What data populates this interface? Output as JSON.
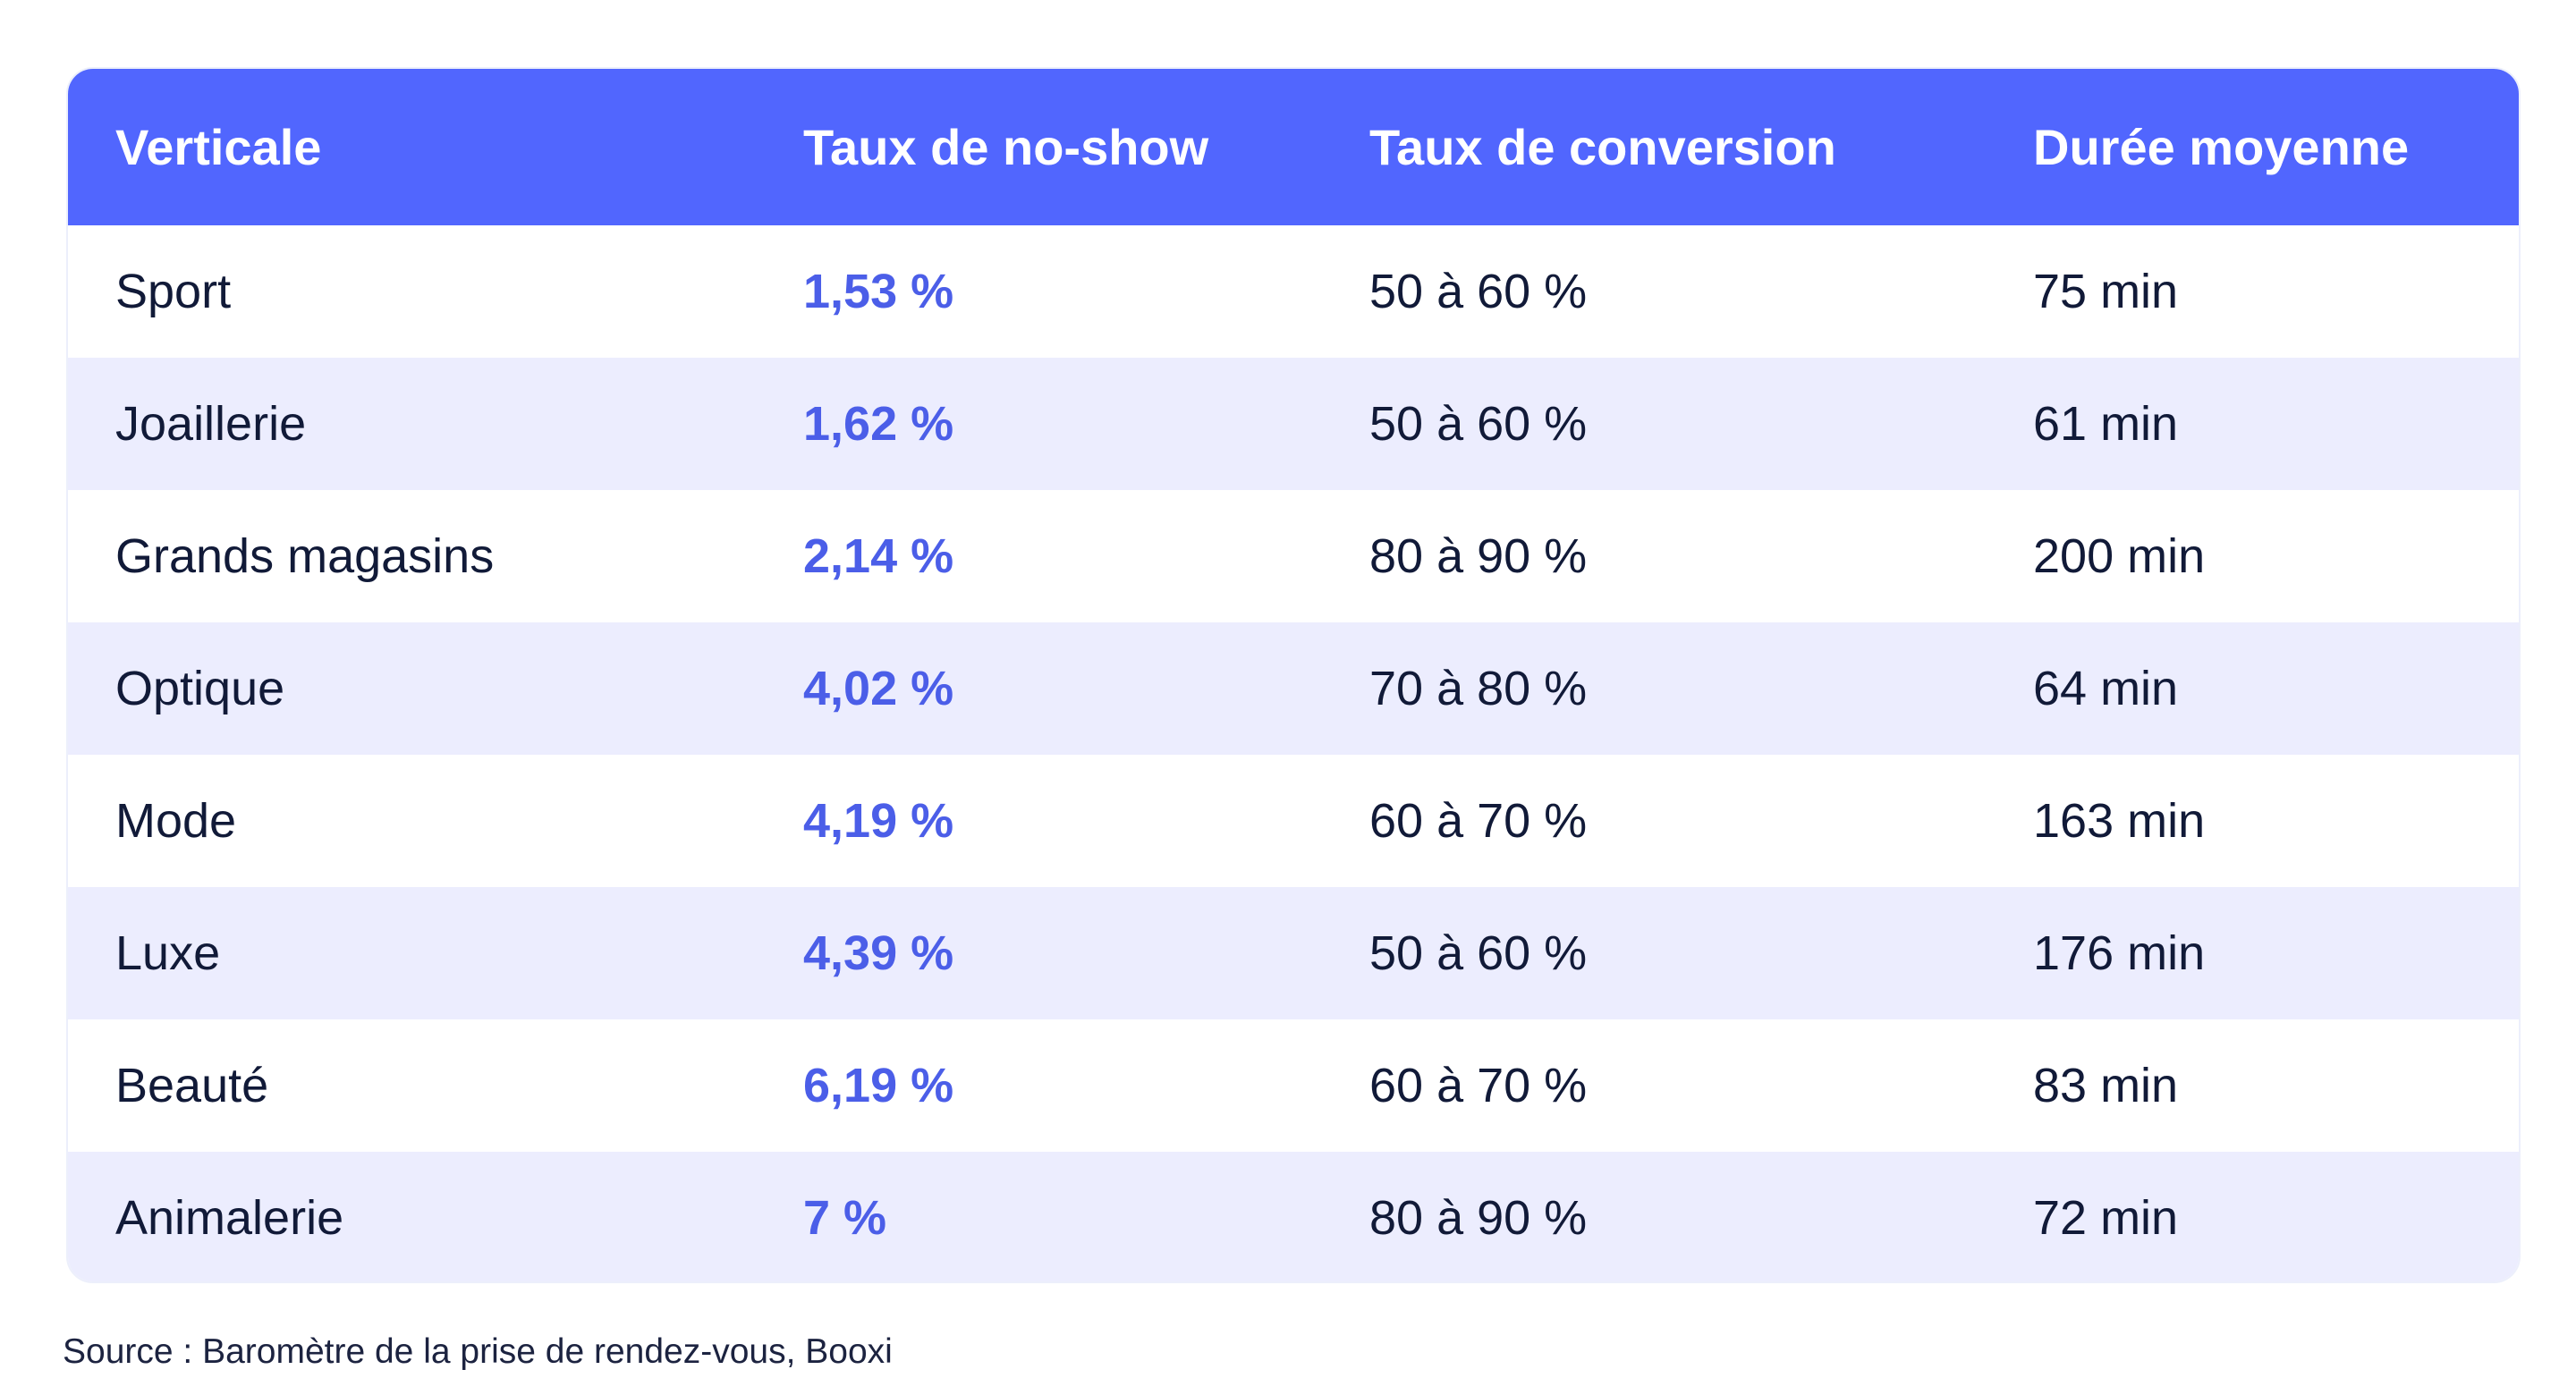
{
  "table": {
    "headers": [
      "Verticale",
      "Taux de no-show",
      "Taux de conversion",
      "Durée moyenne"
    ],
    "rows": [
      {
        "verticale": "Sport",
        "no_show": "1,53 %",
        "conversion": "50 à 60 %",
        "duree": "75 min"
      },
      {
        "verticale": "Joaillerie",
        "no_show": "1,62 %",
        "conversion": "50 à 60 %",
        "duree": "61 min"
      },
      {
        "verticale": "Grands magasins",
        "no_show": "2,14 %",
        "conversion": "80 à 90 %",
        "duree": "200 min"
      },
      {
        "verticale": "Optique",
        "no_show": "4,02 %",
        "conversion": "70 à 80 %",
        "duree": "64 min"
      },
      {
        "verticale": "Mode",
        "no_show": "4,19 %",
        "conversion": "60 à 70 %",
        "duree": "163 min"
      },
      {
        "verticale": "Luxe",
        "no_show": "4,39 %",
        "conversion": "50 à 60 %",
        "duree": "176 min"
      },
      {
        "verticale": "Beauté",
        "no_show": "6,19 %",
        "conversion": "60 à 70 %",
        "duree": "83 min"
      },
      {
        "verticale": "Animalerie",
        "no_show": "7 %",
        "conversion": "80 à 90 %",
        "duree": "72 min"
      }
    ]
  },
  "source": "Source : Baromètre de la prise de rendez-vous, Booxi",
  "colors": {
    "header_bg": "#5166fe",
    "alt_row_bg": "#ecedfe",
    "rate_text": "#4b5ee8"
  }
}
